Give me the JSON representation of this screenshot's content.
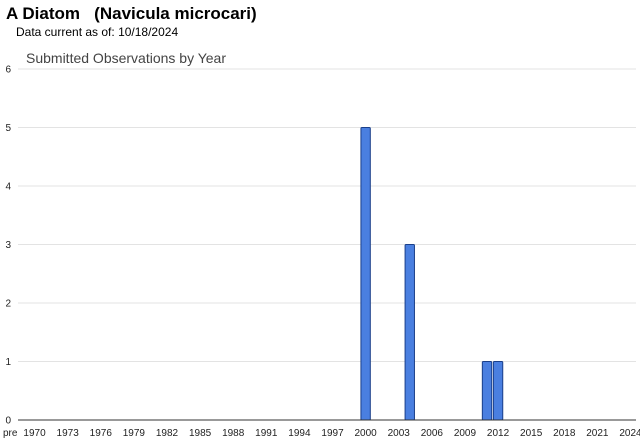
{
  "header": {
    "species_common": "A Diatom",
    "species_scientific": "(Navicula microcari)",
    "date_prefix": "Data current as of:",
    "date": "10/18/2024"
  },
  "chart_data": {
    "type": "bar",
    "title": "Submitted Observations by Year",
    "xlabel": "",
    "ylabel": "",
    "ylim": [
      0,
      6
    ],
    "yticks": [
      0,
      1,
      2,
      3,
      4,
      5,
      6
    ],
    "grid": true,
    "legend": "none",
    "bar_color": "#4a7fe0",
    "bar_edge_color": "#1a3f8a",
    "grid_color": "#e3e3e3",
    "tick_labels": [
      "pre",
      "1970",
      "1973",
      "1976",
      "1979",
      "1982",
      "1985",
      "1988",
      "1991",
      "1994",
      "1997",
      "2000",
      "2003",
      "2006",
      "2009",
      "2012",
      "2015",
      "2018",
      "2021",
      "2024"
    ],
    "categories": [
      "pre",
      "1970",
      "1971",
      "1972",
      "1973",
      "1974",
      "1975",
      "1976",
      "1977",
      "1978",
      "1979",
      "1980",
      "1981",
      "1982",
      "1983",
      "1984",
      "1985",
      "1986",
      "1987",
      "1988",
      "1989",
      "1990",
      "1991",
      "1992",
      "1993",
      "1994",
      "1995",
      "1996",
      "1997",
      "1998",
      "1999",
      "2000",
      "2001",
      "2002",
      "2003",
      "2004",
      "2005",
      "2006",
      "2007",
      "2008",
      "2009",
      "2010",
      "2011",
      "2012",
      "2013",
      "2014",
      "2015",
      "2016",
      "2017",
      "2018",
      "2019",
      "2020",
      "2021",
      "2022",
      "2023",
      "2024"
    ],
    "values": [
      0,
      0,
      0,
      0,
      0,
      0,
      0,
      0,
      0,
      0,
      0,
      0,
      0,
      0,
      0,
      0,
      0,
      0,
      0,
      0,
      0,
      0,
      0,
      0,
      0,
      0,
      0,
      0,
      0,
      0,
      0,
      5,
      0,
      0,
      0,
      3,
      0,
      0,
      0,
      0,
      0,
      0,
      1,
      1,
      0,
      0,
      0,
      0,
      0,
      0,
      0,
      0,
      0,
      0,
      0,
      0
    ]
  }
}
